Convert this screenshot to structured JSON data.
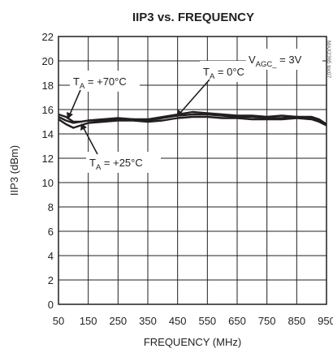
{
  "chart_data": {
    "type": "line",
    "title": "IIP3 vs. FREQUENCY",
    "xlabel": "FREQUENCY (MHz)",
    "ylabel": "IIP3 (dBm)",
    "xlim": [
      50,
      950
    ],
    "ylim": [
      0,
      22
    ],
    "xticks": [
      "50",
      "150",
      "250",
      "350",
      "450",
      "550",
      "650",
      "750",
      "850",
      "950"
    ],
    "yticks": [
      "0",
      "2",
      "4",
      "6",
      "8",
      "10",
      "12",
      "14",
      "16",
      "18",
      "20",
      "22"
    ],
    "grid": true,
    "side_code": "MAX2365 toc07",
    "annotations": [
      {
        "main": "T",
        "sub": "A",
        "rest": " = +70°C"
      },
      {
        "main": "T",
        "sub": "A",
        "rest": " = 0°C"
      },
      {
        "main": "T",
        "sub": "A",
        "rest": " = +25°C"
      },
      {
        "main": "V",
        "sub": "AGC_",
        "rest": " = 3V"
      }
    ],
    "series": [
      {
        "x": [
          50,
          75,
          100,
          125,
          150,
          200,
          250,
          300,
          350,
          400,
          450,
          500,
          550,
          600,
          650,
          700,
          750,
          800,
          850,
          900,
          925,
          950
        ],
        "values": [
          15.6,
          15.4,
          15.0,
          15.0,
          15.1,
          15.2,
          15.3,
          15.2,
          15.2,
          15.4,
          15.6,
          15.8,
          15.7,
          15.6,
          15.5,
          15.5,
          15.4,
          15.5,
          15.4,
          15.4,
          15.2,
          14.8
        ]
      },
      {
        "x": [
          50,
          75,
          100,
          125,
          150,
          200,
          250,
          300,
          350,
          400,
          450,
          500,
          550,
          600,
          650,
          700,
          750,
          800,
          850,
          900,
          925,
          950
        ],
        "values": [
          15.4,
          15.1,
          14.9,
          15.0,
          15.1,
          15.1,
          15.2,
          15.2,
          15.1,
          15.3,
          15.5,
          15.6,
          15.6,
          15.5,
          15.4,
          15.4,
          15.3,
          15.3,
          15.4,
          15.3,
          15.1,
          14.8
        ]
      },
      {
        "x": [
          50,
          75,
          100,
          125,
          150,
          200,
          250,
          300,
          350,
          400,
          450,
          500,
          550,
          600,
          650,
          700,
          750,
          800,
          850,
          900,
          925,
          950
        ],
        "values": [
          15.2,
          14.8,
          14.5,
          14.7,
          14.9,
          15.0,
          15.1,
          15.1,
          15.0,
          15.1,
          15.3,
          15.4,
          15.4,
          15.3,
          15.3,
          15.2,
          15.2,
          15.2,
          15.3,
          15.2,
          15.0,
          14.7
        ]
      }
    ]
  }
}
